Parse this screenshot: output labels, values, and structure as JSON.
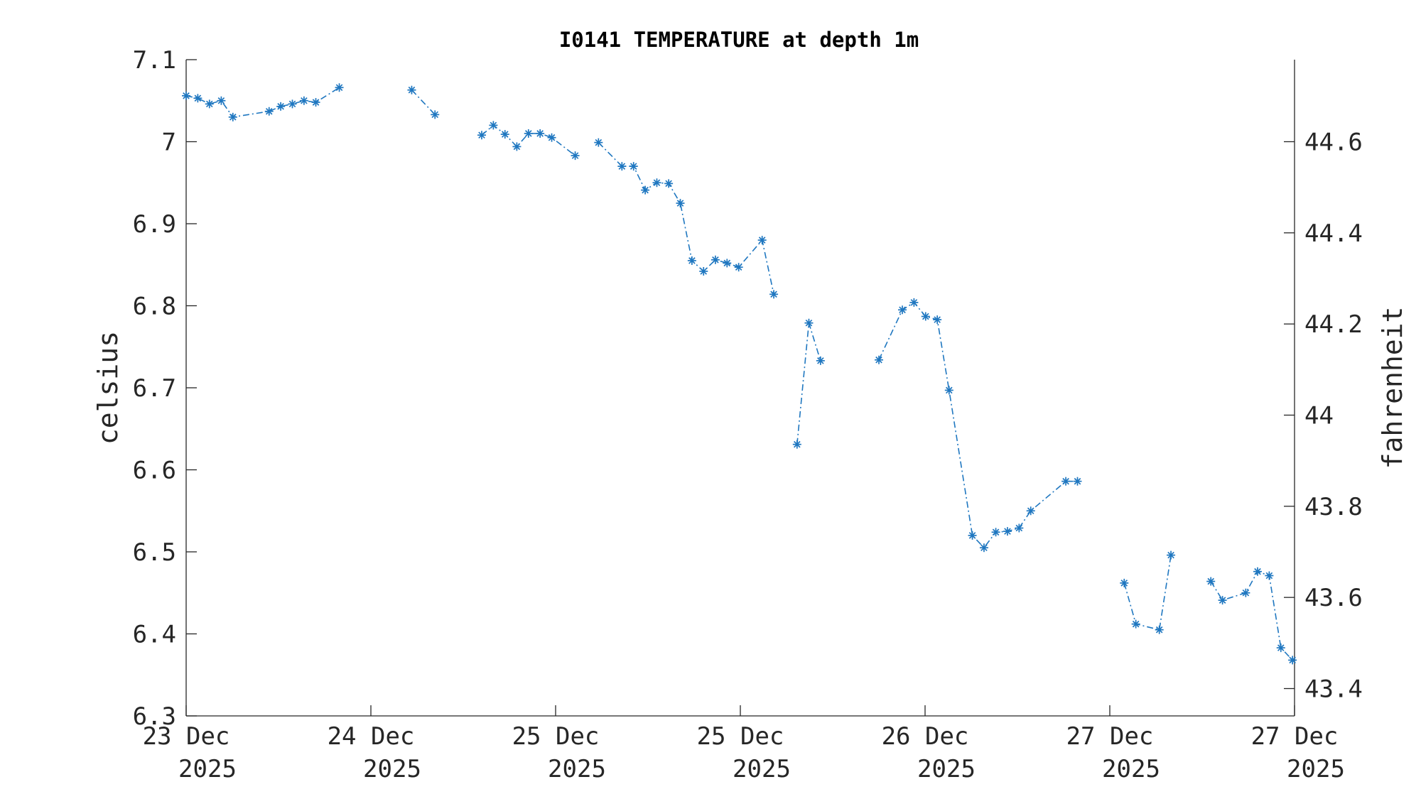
{
  "chart_data": {
    "type": "line",
    "title": "I0141 TEMPERATURE at depth 1m",
    "ylabel": "celsius",
    "y2label": "fahrenheit",
    "ylim": [
      6.3,
      7.1
    ],
    "y2lim": [
      43.34,
      44.78
    ],
    "xlim": [
      0,
      6
    ],
    "yticks": [
      "6.3",
      "6.4",
      "6.5",
      "6.6",
      "6.7",
      "6.8",
      "6.9",
      "7",
      "7.1"
    ],
    "y2ticks": [
      "43.4",
      "43.6",
      "43.8",
      "44",
      "44.2",
      "44.4",
      "44.6"
    ],
    "xticks": [
      {
        "line1": "23 Dec",
        "line2": "2025"
      },
      {
        "line1": "24 Dec",
        "line2": "2025"
      },
      {
        "line1": "25 Dec",
        "line2": "2025"
      },
      {
        "line1": "25 Dec",
        "line2": "2025"
      },
      {
        "line1": "26 Dec",
        "line2": "2025"
      },
      {
        "line1": "27 Dec",
        "line2": "2025"
      },
      {
        "line1": "27 Dec",
        "line2": "2025"
      }
    ],
    "grid": false,
    "marker": "asterisk",
    "line_style": "dash-dot",
    "color": "#1f77c0",
    "series": [
      {
        "segments": [
          [
            [
              0.0,
              7.056
            ],
            [
              0.063,
              7.053
            ],
            [
              0.126,
              7.046
            ],
            [
              0.19,
              7.05
            ],
            [
              0.253,
              7.03
            ],
            [
              0.449,
              7.037
            ],
            [
              0.512,
              7.043
            ],
            [
              0.575,
              7.046
            ],
            [
              0.638,
              7.05
            ],
            [
              0.702,
              7.048
            ],
            [
              0.829,
              7.066
            ]
          ],
          [
            [
              1.221,
              7.063
            ],
            [
              1.347,
              7.033
            ]
          ],
          [
            [
              1.6,
              7.008
            ],
            [
              1.663,
              7.02
            ],
            [
              1.726,
              7.009
            ],
            [
              1.79,
              6.994
            ],
            [
              1.853,
              7.01
            ],
            [
              1.916,
              7.01
            ],
            [
              1.979,
              7.005
            ],
            [
              2.106,
              6.983
            ]
          ],
          [
            [
              2.232,
              6.999
            ],
            [
              2.359,
              6.97
            ],
            [
              2.422,
              6.97
            ],
            [
              2.485,
              6.941
            ],
            [
              2.548,
              6.95
            ],
            [
              2.612,
              6.949
            ],
            [
              2.675,
              6.925
            ],
            [
              2.738,
              6.855
            ],
            [
              2.801,
              6.842
            ],
            [
              2.865,
              6.856
            ],
            [
              2.928,
              6.852
            ],
            [
              2.991,
              6.847
            ],
            [
              3.118,
              6.88
            ],
            [
              3.181,
              6.814
            ]
          ],
          [
            [
              3.307,
              6.631
            ],
            [
              3.371,
              6.779
            ],
            [
              3.434,
              6.733
            ]
          ],
          [
            [
              3.75,
              6.734
            ],
            [
              3.877,
              6.795
            ],
            [
              3.94,
              6.804
            ],
            [
              4.003,
              6.787
            ],
            [
              4.066,
              6.783
            ],
            [
              4.13,
              6.697
            ],
            [
              4.256,
              6.52
            ],
            [
              4.319,
              6.505
            ],
            [
              4.383,
              6.524
            ],
            [
              4.446,
              6.525
            ],
            [
              4.509,
              6.529
            ],
            [
              4.572,
              6.55
            ],
            [
              4.762,
              6.586
            ],
            [
              4.825,
              6.586
            ]
          ],
          [
            [
              5.078,
              6.462
            ],
            [
              5.141,
              6.412
            ],
            [
              5.268,
              6.405
            ],
            [
              5.331,
              6.496
            ]
          ],
          [
            [
              5.547,
              6.464
            ],
            [
              5.61,
              6.441
            ],
            [
              5.736,
              6.45
            ],
            [
              5.8,
              6.476
            ],
            [
              5.863,
              6.471
            ],
            [
              5.926,
              6.383
            ],
            [
              5.989,
              6.368
            ]
          ]
        ]
      }
    ]
  }
}
